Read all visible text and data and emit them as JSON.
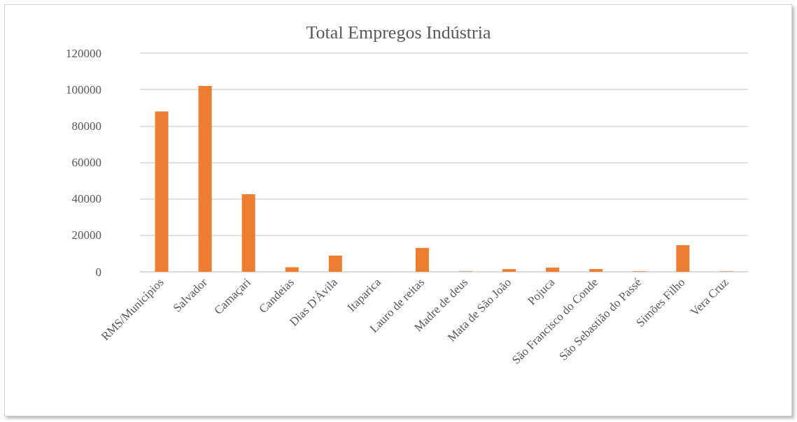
{
  "chart_data": {
    "type": "bar",
    "title": "Total Empregos Indústria",
    "categories": [
      "RMS/Municípios",
      "Salvador",
      "Camaçari",
      "Candeias",
      "Dias D'Ávila",
      "Itaparica",
      "Lauro de reitas",
      "Madre de deus",
      "Mata de São João",
      "Pojuca",
      "São Francisco do Conde",
      "São Sebastião do Passé",
      "Simões Filho",
      "Vera Cruz"
    ],
    "values": [
      88000,
      102000,
      42600,
      2500,
      8900,
      null,
      13100,
      200,
      1500,
      2300,
      1500,
      300,
      14600,
      200
    ],
    "color": "#ed7d31",
    "ylim": [
      0,
      120000
    ],
    "yticks": [
      0,
      20000,
      40000,
      60000,
      80000,
      100000,
      120000
    ],
    "grid": "y"
  }
}
